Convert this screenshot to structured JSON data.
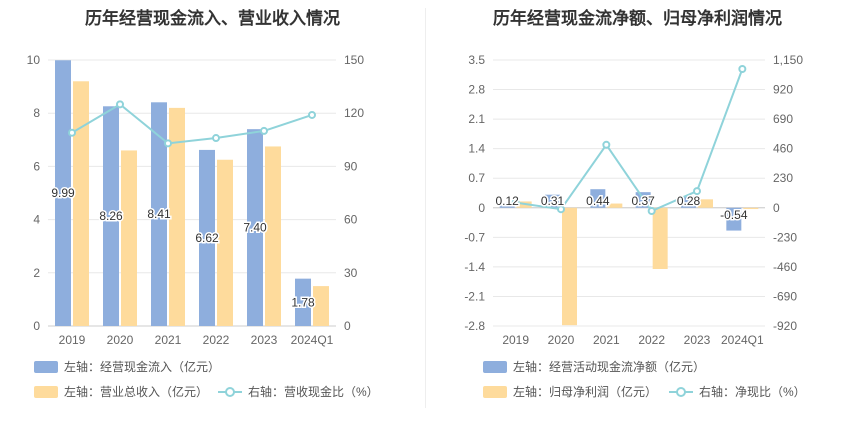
{
  "colors": {
    "bar_blue": "#8eaedd",
    "bar_orange": "#fedb9c",
    "line_teal": "#8fd3da",
    "grid": "#e8e8e8",
    "axis_text": "#666666"
  },
  "left": {
    "title": "历年经营现金流入、营业收入情况",
    "legend": [
      {
        "text": "左轴：经营现金流入（亿元）",
        "icon": "blue-swatch"
      },
      {
        "text": "左轴：营业总收入（亿元）",
        "icon": "orange-swatch"
      },
      {
        "text": "右轴：营收现金比（%）",
        "icon": "teal-line-marker"
      }
    ]
  },
  "right": {
    "title": "历年经营现金流净额、归母净利润情况",
    "legend": [
      {
        "text": "左轴：经营活动现金流净额（亿元）",
        "icon": "blue-swatch"
      },
      {
        "text": "左轴：归母净利润（亿元）",
        "icon": "orange-swatch"
      },
      {
        "text": "右轴：净现比（%）",
        "icon": "teal-line-marker"
      }
    ]
  },
  "chart_data": [
    {
      "type": "bar",
      "title": "历年经营现金流入、营业收入情况",
      "categories": [
        "2019",
        "2020",
        "2021",
        "2022",
        "2023",
        "2024Q1"
      ],
      "y_left": {
        "ticks": [
          "0",
          "2",
          "4",
          "6",
          "8",
          "10"
        ],
        "range": [
          0,
          10
        ]
      },
      "y_right": {
        "ticks": [
          "0",
          "30",
          "60",
          "90",
          "120",
          "150"
        ],
        "range": [
          0,
          150
        ]
      },
      "series": [
        {
          "name": "左轴：经营现金流入（亿元）",
          "axis": "left",
          "kind": "bar",
          "color": "#8eaedd",
          "values": [
            9.99,
            8.26,
            8.41,
            6.62,
            7.4,
            1.78
          ],
          "labels": [
            "9.99",
            "8.26",
            "8.41",
            "6.62",
            "7.40",
            "1.78"
          ]
        },
        {
          "name": "左轴：营业总收入（亿元）",
          "axis": "left",
          "kind": "bar",
          "color": "#fedb9c",
          "values": [
            9.2,
            6.6,
            8.2,
            6.25,
            6.75,
            1.5
          ]
        },
        {
          "name": "右轴：营收现金比（%）",
          "axis": "right",
          "kind": "line",
          "color": "#8fd3da",
          "values": [
            109,
            125,
            103,
            106,
            110,
            119
          ]
        }
      ]
    },
    {
      "type": "bar",
      "title": "历年经营现金流净额、归母净利润情况",
      "categories": [
        "2019",
        "2020",
        "2021",
        "2022",
        "2023",
        "2024Q1"
      ],
      "y_left": {
        "ticks": [
          "3.5",
          "2.8",
          "2.1",
          "1.4",
          "0.7",
          "0",
          "-0.7",
          "-1.4",
          "-2.1",
          "-2.8"
        ],
        "range": [
          -2.8,
          3.5
        ]
      },
      "y_right": {
        "ticks": [
          "1,150",
          "920",
          "690",
          "460",
          "230",
          "0",
          "-230",
          "-460",
          "-690",
          "-920"
        ],
        "range": [
          -920,
          1150
        ]
      },
      "series": [
        {
          "name": "左轴：经营活动现金流净额（亿元）",
          "axis": "left",
          "kind": "bar",
          "color": "#8eaedd",
          "values": [
            0.12,
            0.31,
            0.44,
            0.37,
            0.28,
            -0.54
          ],
          "labels": [
            "0.12",
            "0.31",
            "0.44",
            "0.37",
            "0.28",
            "-0.54"
          ]
        },
        {
          "name": "左轴：归母净利润（亿元）",
          "axis": "left",
          "kind": "bar",
          "color": "#fedb9c",
          "values": [
            0.15,
            -2.78,
            0.1,
            -1.45,
            0.2,
            -0.03
          ]
        },
        {
          "name": "右轴：净现比（%）",
          "axis": "right",
          "kind": "line",
          "color": "#8fd3da",
          "values": [
            40,
            -11,
            490,
            -25,
            130,
            1080
          ]
        }
      ]
    }
  ]
}
